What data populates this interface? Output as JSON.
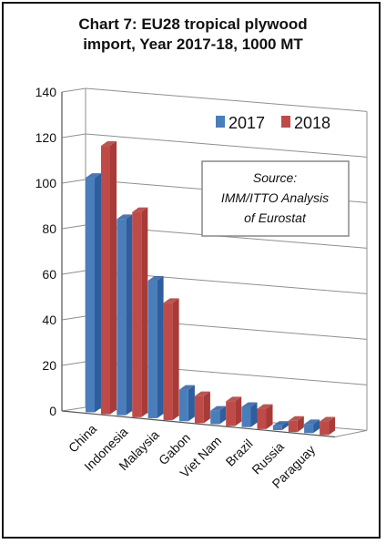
{
  "chart_data": {
    "type": "bar",
    "title_lines": [
      "Chart 7: EU28 tropical plywood",
      "import, Year 2017-18, 1000 MT"
    ],
    "categories": [
      "China",
      "Indonesia",
      "Malaysia",
      "Gabon",
      "Viet Nam",
      "Brazil",
      "Russia",
      "Paraguay"
    ],
    "series": [
      {
        "name": "2017",
        "values": [
          104,
          87,
          61,
          14,
          6,
          9,
          2,
          4
        ],
        "color": "#4a7ebb",
        "top_color": "#2f5e9e"
      },
      {
        "name": "2018",
        "values": [
          119,
          91,
          52,
          12,
          11,
          9,
          5,
          6
        ],
        "color": "#be4b48",
        "top_color": "#a83a37"
      }
    ],
    "ylim": [
      0,
      140
    ],
    "yticks": [
      "0",
      "20",
      "40",
      "60",
      "80",
      "100",
      "120",
      "140"
    ],
    "grid": true,
    "legend_placement": "top-right",
    "annotation": [
      "Source:",
      "IMM/ITTO Analysis",
      "of Eurostat"
    ]
  }
}
